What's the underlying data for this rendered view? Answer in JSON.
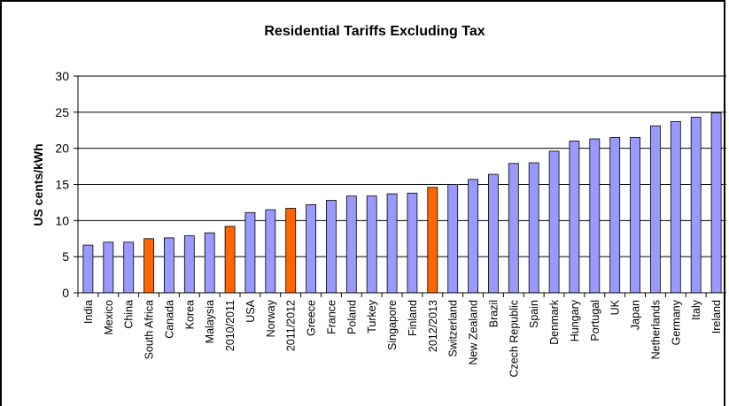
{
  "chart_data": {
    "type": "bar",
    "title": "Residential Tariffs Excluding Tax",
    "xlabel": "",
    "ylabel": "US cents/kWh",
    "ylim": [
      0,
      30
    ],
    "yticks": [
      0,
      5,
      10,
      15,
      20,
      25,
      30
    ],
    "grid": true,
    "legend": "none",
    "colors": {
      "default": "#9999ff",
      "highlight": "#ff6600",
      "edge": "#000000"
    },
    "categories": [
      "India",
      "Mexico",
      "China",
      "South Africa",
      "Canada",
      "Korea",
      "Malaysia",
      "2010/2011",
      "USA",
      "Norway",
      "2011/2012",
      "Greece",
      "France",
      "Poland",
      "Turkey",
      "Singapore",
      "Finland",
      "2012/2013",
      "Switzerland",
      "New Zealand",
      "Brazil",
      "Czech Republic",
      "Spain",
      "Denmark",
      "Hungary",
      "Portugal",
      "UK",
      "Japan",
      "Netherlands",
      "Germany",
      "Italy",
      "Ireland"
    ],
    "values": [
      6.6,
      7.0,
      7.0,
      7.5,
      7.6,
      7.9,
      8.3,
      9.2,
      11.1,
      11.5,
      11.7,
      12.2,
      12.8,
      13.4,
      13.4,
      13.7,
      13.8,
      14.6,
      15.0,
      15.7,
      16.4,
      17.9,
      18.0,
      19.6,
      21.0,
      21.3,
      21.5,
      21.5,
      23.1,
      23.7,
      24.3,
      24.9
    ],
    "highlighted": [
      "South Africa",
      "2010/2011",
      "2011/2012",
      "2012/2013"
    ]
  }
}
